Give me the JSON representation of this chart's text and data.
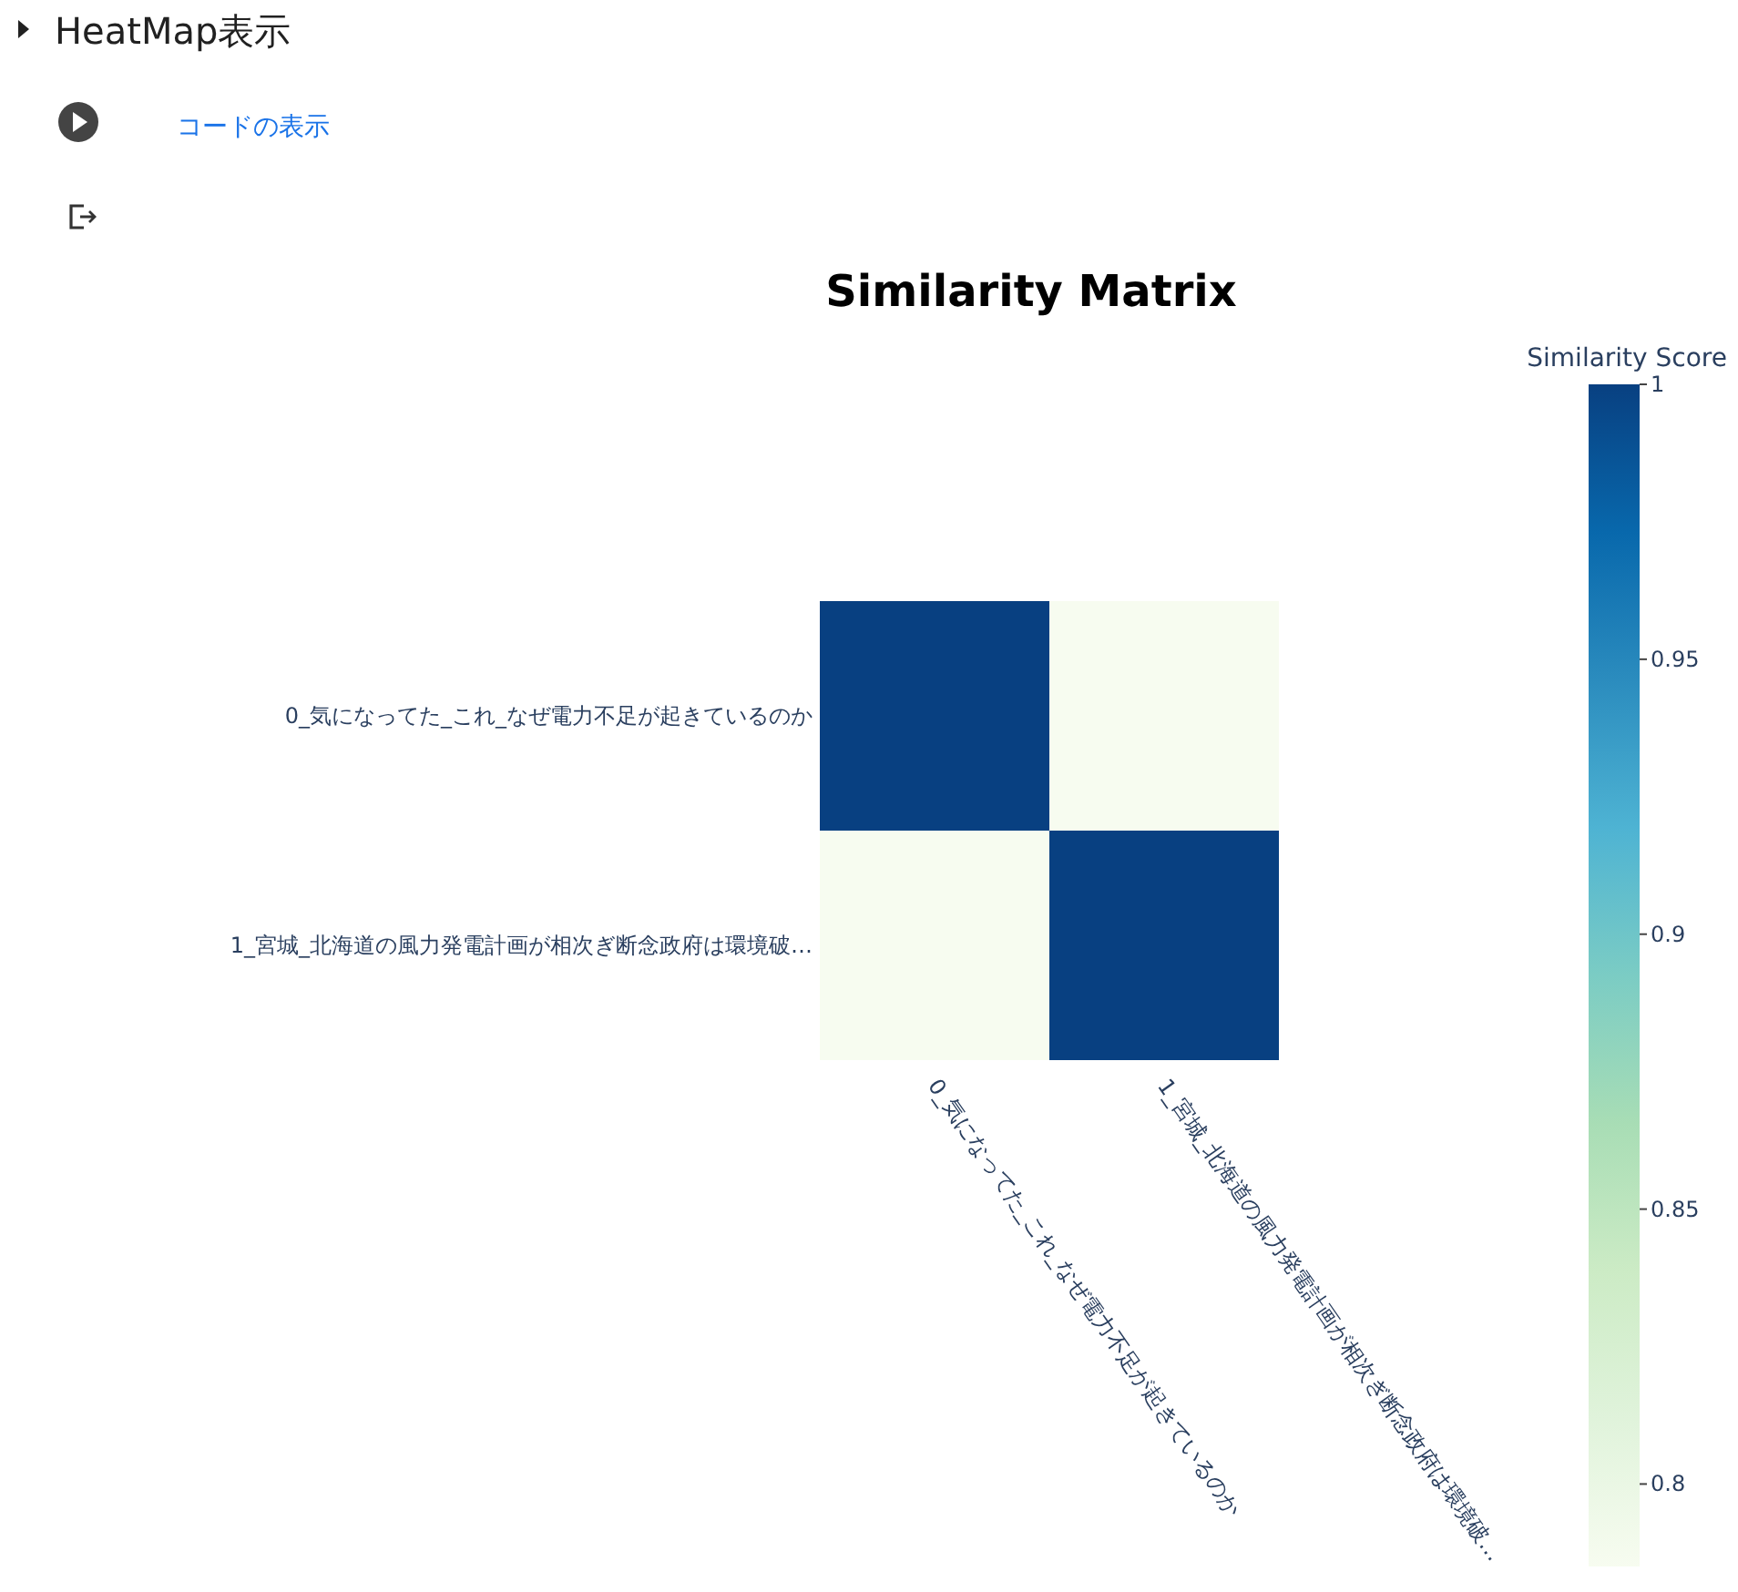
{
  "chart_data": {
    "type": "heatmap",
    "title": "Similarity Matrix",
    "clabel": "Similarity Score",
    "categories": [
      "0_気になってた_これ_なぜ電力不足が起きているのか",
      "1_宮城_北海道の風力発電計画が相次ぎ断念政府は環境破…"
    ],
    "y_categories": [
      "0_気になってた_これ_なぜ電力不足が起きているのか",
      "1_宮城_北海道の風力発電計画が相次ぎ断念政府は環境破…"
    ],
    "cells": [
      [
        1,
        0.785
      ],
      [
        0.785,
        1
      ]
    ],
    "clim": [
      0.785,
      1
    ],
    "cticks": [
      0.8,
      0.85,
      0.9,
      0.95,
      1
    ],
    "annotations": [
      "HeatMap表示",
      "コードの表示"
    ]
  }
}
